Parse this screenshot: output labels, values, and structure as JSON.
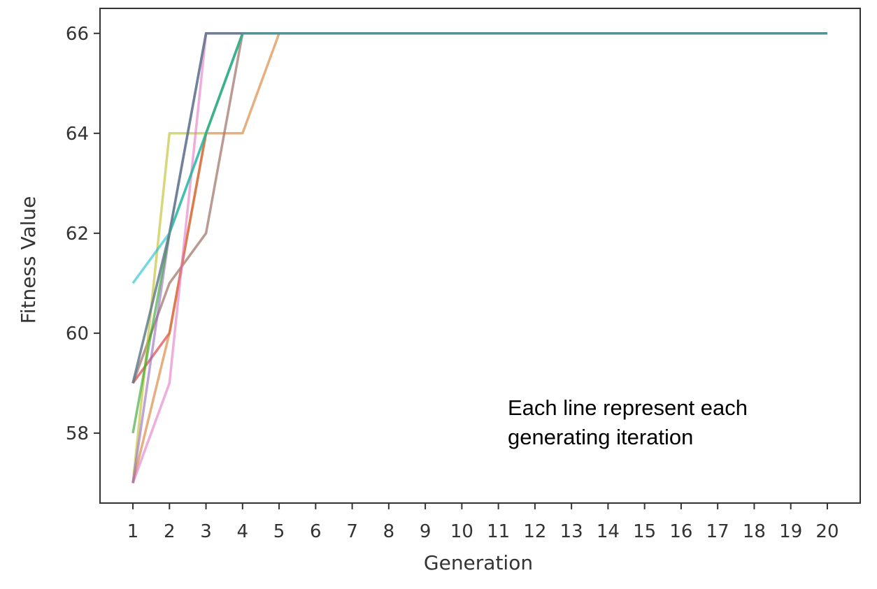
{
  "chart_data": {
    "type": "line",
    "title": "",
    "xlabel": "Generation",
    "ylabel": "Fitness Value",
    "x": [
      1,
      2,
      3,
      4,
      5,
      6,
      7,
      8,
      9,
      10,
      11,
      12,
      13,
      14,
      15,
      16,
      17,
      18,
      19,
      20
    ],
    "xticks": [
      "1",
      "2",
      "3",
      "4",
      "5",
      "6",
      "7",
      "8",
      "9",
      "10",
      "11",
      "12",
      "13",
      "14",
      "15",
      "16",
      "17",
      "18",
      "19",
      "20"
    ],
    "yticks": [
      "58",
      "60",
      "62",
      "64",
      "66"
    ],
    "xlim": [
      0.1,
      20.9
    ],
    "ylim": [
      56.6,
      66.5
    ],
    "grid": false,
    "legend": "none",
    "annotation_lines": [
      "Each line represent each",
      "generating iteration"
    ],
    "series": [
      {
        "color": "#d62728",
        "values": [
          59,
          60,
          64,
          66,
          66,
          66,
          66,
          66,
          66,
          66,
          66,
          66,
          66,
          66,
          66,
          66,
          66,
          66,
          66,
          66
        ]
      },
      {
        "color": "#8c564b",
        "values": [
          59,
          61,
          62,
          66,
          66,
          66,
          66,
          66,
          66,
          66,
          66,
          66,
          66,
          66,
          66,
          66,
          66,
          66,
          66,
          66
        ]
      },
      {
        "color": "#d67a2a",
        "values": [
          57,
          60,
          64,
          64,
          66,
          66,
          66,
          66,
          66,
          66,
          66,
          66,
          66,
          66,
          66,
          66,
          66,
          66,
          66,
          66
        ]
      },
      {
        "color": "#bcbd22",
        "values": [
          57,
          64,
          64,
          66,
          66,
          66,
          66,
          66,
          66,
          66,
          66,
          66,
          66,
          66,
          66,
          66,
          66,
          66,
          66,
          66
        ]
      },
      {
        "color": "#e377c2",
        "values": [
          57,
          59,
          66,
          66,
          66,
          66,
          66,
          66,
          66,
          66,
          66,
          66,
          66,
          66,
          66,
          66,
          66,
          66,
          66,
          66
        ]
      },
      {
        "color": "#9467bd",
        "values": [
          57,
          62,
          66,
          66,
          66,
          66,
          66,
          66,
          66,
          66,
          66,
          66,
          66,
          66,
          66,
          66,
          66,
          66,
          66,
          66
        ]
      },
      {
        "color": "#2ca02c",
        "values": [
          58,
          62,
          64,
          66,
          66,
          66,
          66,
          66,
          66,
          66,
          66,
          66,
          66,
          66,
          66,
          66,
          66,
          66,
          66,
          66
        ]
      },
      {
        "color": "#1f77b4",
        "values": [
          59,
          62,
          66,
          66,
          66,
          66,
          66,
          66,
          66,
          66,
          66,
          66,
          66,
          66,
          66,
          66,
          66,
          66,
          66,
          66
        ]
      },
      {
        "color": "#17becf",
        "values": [
          61,
          62,
          64,
          66,
          66,
          66,
          66,
          66,
          66,
          66,
          66,
          66,
          66,
          66,
          66,
          66,
          66,
          66,
          66,
          66
        ]
      },
      {
        "color": "#7f7f7f",
        "values": [
          59,
          62,
          66,
          66,
          66,
          66,
          66,
          66,
          66,
          66,
          66,
          66,
          66,
          66,
          66,
          66,
          66,
          66,
          66,
          66
        ]
      }
    ]
  }
}
